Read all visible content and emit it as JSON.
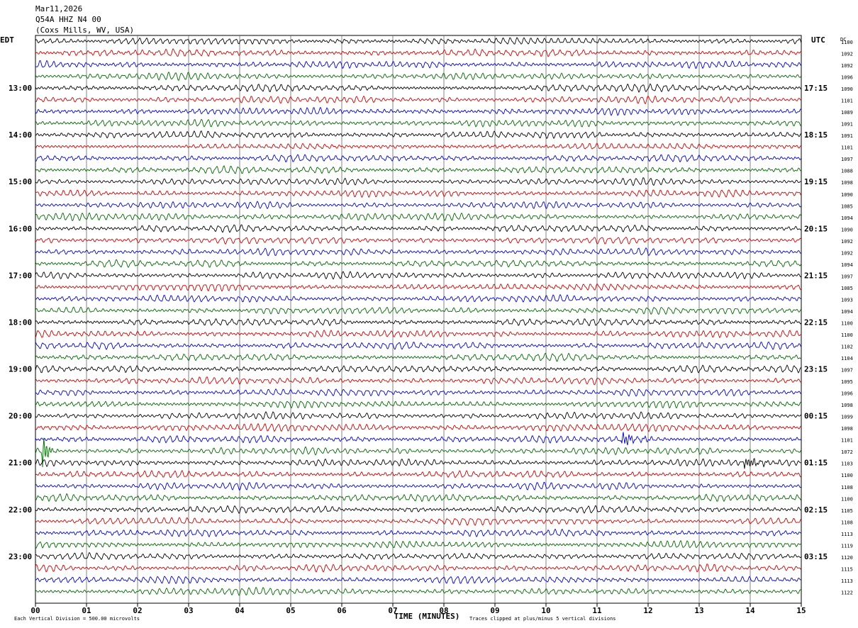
{
  "header": {
    "date": "Mar11,2026",
    "station": "Q54A HHZ N4 00",
    "location": "(Coxs Mills, WV, USA)"
  },
  "chart_data": {
    "type": "line",
    "left_timezone": "EDT",
    "right_timezone": "UTC",
    "dc_label": "DC",
    "left_hour_labels": [
      "13:00",
      "14:00",
      "15:00",
      "16:00",
      "17:00",
      "18:00",
      "19:00",
      "20:00",
      "21:00",
      "22:00",
      "23:00"
    ],
    "right_hour_labels": [
      "17:15",
      "18:15",
      "19:15",
      "20:15",
      "21:15",
      "22:15",
      "23:15",
      "00:15",
      "01:15",
      "02:15",
      "03:15"
    ],
    "first_labeled_row": 4,
    "rows_per_hour": 4,
    "dc_values": [
      1100,
      1092,
      1092,
      1096,
      1090,
      1101,
      1089,
      1091,
      1091,
      1101,
      1097,
      1088,
      1098,
      1090,
      1085,
      1094,
      1090,
      1092,
      1092,
      1094,
      1097,
      1085,
      1093,
      1094,
      1100,
      1100,
      1102,
      1104,
      1097,
      1095,
      1096,
      1098,
      1099,
      1098,
      1101,
      1072,
      1103,
      1100,
      1108,
      1100,
      1105,
      1108,
      1113,
      1119,
      1120,
      1115,
      1113,
      1122
    ],
    "trace_colors": [
      "#000000",
      "#cc0000",
      "#0000cc",
      "#006600"
    ],
    "x_ticks": [
      "00",
      "01",
      "02",
      "03",
      "04",
      "05",
      "06",
      "07",
      "08",
      "09",
      "10",
      "11",
      "12",
      "13",
      "14",
      "15"
    ],
    "x_range": [
      0,
      15
    ],
    "xlabel": "TIME (MINUTES)",
    "footer_left": "Each Vertical Division =  500.00 microvolts",
    "footer_right": "Traces clipped at plus/minus 5 vertical divisions",
    "events": [
      {
        "row": 35,
        "minute": 0.15,
        "note": "large green spike"
      },
      {
        "row": 34,
        "minute": 11.5,
        "note": "blue burst"
      },
      {
        "row": 36,
        "minute": 13.9,
        "note": "black burst"
      }
    ],
    "grid": true
  }
}
